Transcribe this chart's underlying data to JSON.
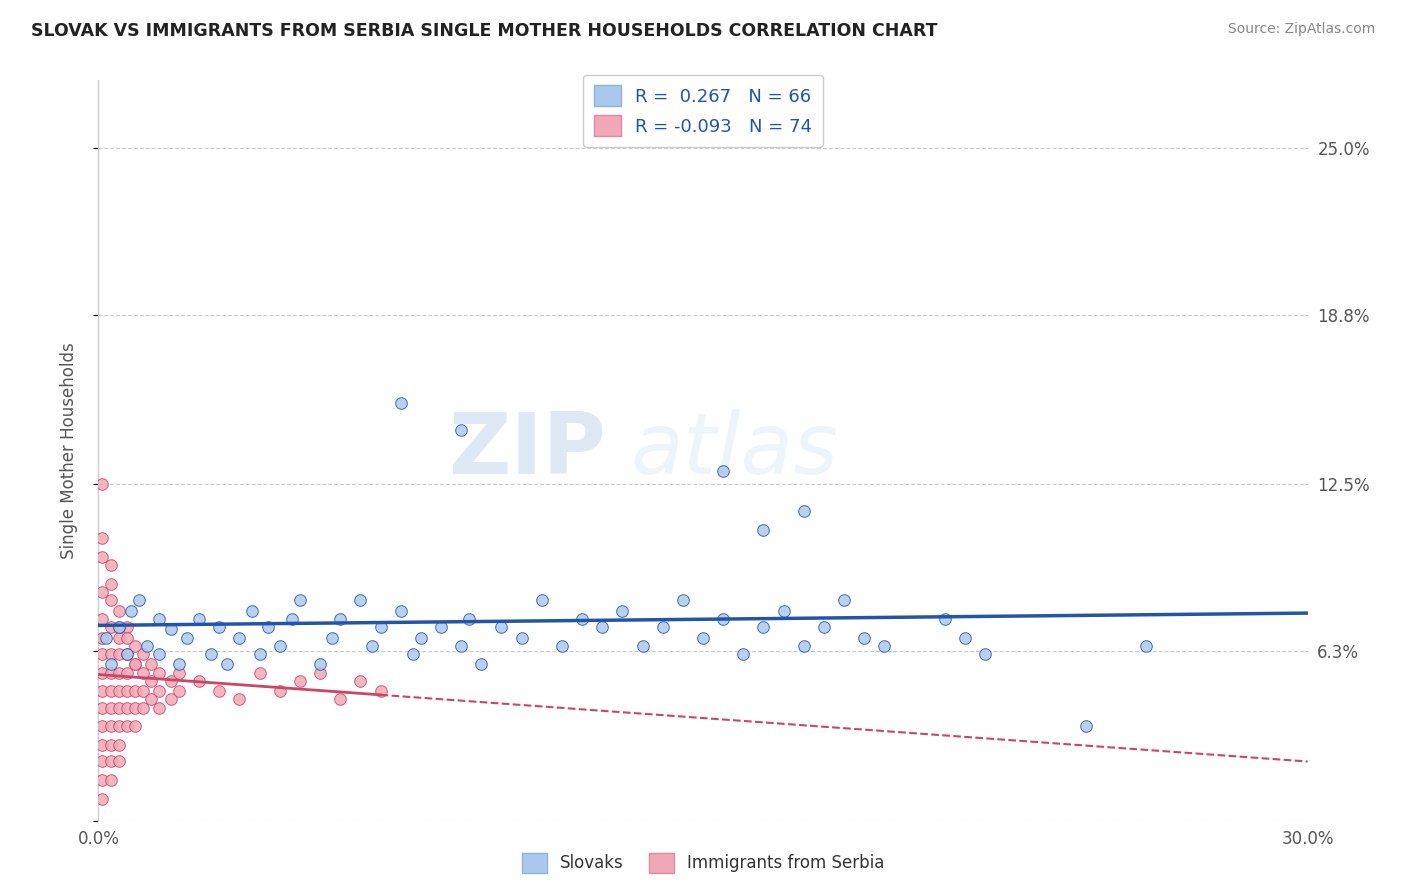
{
  "title": "SLOVAK VS IMMIGRANTS FROM SERBIA SINGLE MOTHER HOUSEHOLDS CORRELATION CHART",
  "source": "Source: ZipAtlas.com",
  "ylabel": "Single Mother Households",
  "xlim": [
    0.0,
    0.3
  ],
  "ylim": [
    0.0,
    0.275
  ],
  "yticks": [
    0.0,
    0.063,
    0.125,
    0.188,
    0.25
  ],
  "ytick_labels": [
    "",
    "6.3%",
    "12.5%",
    "18.8%",
    "25.0%"
  ],
  "xticks": [
    0.0,
    0.05,
    0.1,
    0.15,
    0.2,
    0.25,
    0.3
  ],
  "xtick_labels": [
    "0.0%",
    "",
    "",
    "",
    "",
    "",
    "30.0%"
  ],
  "r_slovak": 0.267,
  "n_slovak": 66,
  "r_serbia": -0.093,
  "n_serbia": 74,
  "blue_color": "#adc8ed",
  "pink_color": "#f0a8b8",
  "line_blue": "#2255aa",
  "line_pink": "#cc4466",
  "watermark_zip": "ZIP",
  "watermark_atlas": "atlas",
  "background_color": "#ffffff",
  "grid_color": "#cccccc",
  "legend_label_slovak": "Slovaks",
  "legend_label_serbia": "Immigrants from Serbia",
  "scatter_blue": [
    [
      0.002,
      0.068
    ],
    [
      0.003,
      0.058
    ],
    [
      0.005,
      0.072
    ],
    [
      0.007,
      0.062
    ],
    [
      0.008,
      0.078
    ],
    [
      0.01,
      0.082
    ],
    [
      0.012,
      0.065
    ],
    [
      0.015,
      0.075
    ],
    [
      0.015,
      0.062
    ],
    [
      0.018,
      0.071
    ],
    [
      0.02,
      0.058
    ],
    [
      0.022,
      0.068
    ],
    [
      0.025,
      0.075
    ],
    [
      0.028,
      0.062
    ],
    [
      0.03,
      0.072
    ],
    [
      0.032,
      0.058
    ],
    [
      0.035,
      0.068
    ],
    [
      0.038,
      0.078
    ],
    [
      0.04,
      0.062
    ],
    [
      0.042,
      0.072
    ],
    [
      0.045,
      0.065
    ],
    [
      0.048,
      0.075
    ],
    [
      0.05,
      0.082
    ],
    [
      0.055,
      0.058
    ],
    [
      0.058,
      0.068
    ],
    [
      0.06,
      0.075
    ],
    [
      0.065,
      0.082
    ],
    [
      0.068,
      0.065
    ],
    [
      0.07,
      0.072
    ],
    [
      0.075,
      0.078
    ],
    [
      0.078,
      0.062
    ],
    [
      0.08,
      0.068
    ],
    [
      0.085,
      0.072
    ],
    [
      0.09,
      0.065
    ],
    [
      0.092,
      0.075
    ],
    [
      0.095,
      0.058
    ],
    [
      0.1,
      0.072
    ],
    [
      0.105,
      0.068
    ],
    [
      0.11,
      0.082
    ],
    [
      0.115,
      0.065
    ],
    [
      0.12,
      0.075
    ],
    [
      0.125,
      0.072
    ],
    [
      0.13,
      0.078
    ],
    [
      0.135,
      0.065
    ],
    [
      0.14,
      0.072
    ],
    [
      0.145,
      0.082
    ],
    [
      0.15,
      0.068
    ],
    [
      0.155,
      0.075
    ],
    [
      0.16,
      0.062
    ],
    [
      0.165,
      0.072
    ],
    [
      0.17,
      0.078
    ],
    [
      0.175,
      0.065
    ],
    [
      0.18,
      0.072
    ],
    [
      0.185,
      0.082
    ],
    [
      0.19,
      0.068
    ],
    [
      0.075,
      0.155
    ],
    [
      0.09,
      0.145
    ],
    [
      0.155,
      0.13
    ],
    [
      0.175,
      0.115
    ],
    [
      0.165,
      0.108
    ],
    [
      0.195,
      0.065
    ],
    [
      0.21,
      0.075
    ],
    [
      0.215,
      0.068
    ],
    [
      0.22,
      0.062
    ],
    [
      0.245,
      0.035
    ],
    [
      0.26,
      0.065
    ]
  ],
  "scatter_pink": [
    [
      0.001,
      0.125
    ],
    [
      0.001,
      0.105
    ],
    [
      0.001,
      0.085
    ],
    [
      0.001,
      0.075
    ],
    [
      0.001,
      0.068
    ],
    [
      0.001,
      0.062
    ],
    [
      0.001,
      0.055
    ],
    [
      0.001,
      0.048
    ],
    [
      0.001,
      0.042
    ],
    [
      0.001,
      0.035
    ],
    [
      0.001,
      0.028
    ],
    [
      0.001,
      0.022
    ],
    [
      0.001,
      0.015
    ],
    [
      0.001,
      0.008
    ],
    [
      0.003,
      0.095
    ],
    [
      0.003,
      0.082
    ],
    [
      0.003,
      0.072
    ],
    [
      0.003,
      0.062
    ],
    [
      0.003,
      0.055
    ],
    [
      0.003,
      0.048
    ],
    [
      0.003,
      0.042
    ],
    [
      0.003,
      0.035
    ],
    [
      0.003,
      0.028
    ],
    [
      0.003,
      0.022
    ],
    [
      0.003,
      0.015
    ],
    [
      0.005,
      0.078
    ],
    [
      0.005,
      0.068
    ],
    [
      0.005,
      0.062
    ],
    [
      0.005,
      0.055
    ],
    [
      0.005,
      0.048
    ],
    [
      0.005,
      0.042
    ],
    [
      0.005,
      0.035
    ],
    [
      0.005,
      0.028
    ],
    [
      0.005,
      0.022
    ],
    [
      0.007,
      0.072
    ],
    [
      0.007,
      0.062
    ],
    [
      0.007,
      0.055
    ],
    [
      0.007,
      0.048
    ],
    [
      0.007,
      0.042
    ],
    [
      0.007,
      0.035
    ],
    [
      0.009,
      0.065
    ],
    [
      0.009,
      0.058
    ],
    [
      0.009,
      0.048
    ],
    [
      0.009,
      0.042
    ],
    [
      0.009,
      0.035
    ],
    [
      0.011,
      0.062
    ],
    [
      0.011,
      0.055
    ],
    [
      0.011,
      0.048
    ],
    [
      0.011,
      0.042
    ],
    [
      0.013,
      0.058
    ],
    [
      0.013,
      0.052
    ],
    [
      0.013,
      0.045
    ],
    [
      0.015,
      0.055
    ],
    [
      0.015,
      0.048
    ],
    [
      0.015,
      0.042
    ],
    [
      0.018,
      0.052
    ],
    [
      0.018,
      0.045
    ],
    [
      0.02,
      0.055
    ],
    [
      0.02,
      0.048
    ],
    [
      0.025,
      0.052
    ],
    [
      0.03,
      0.048
    ],
    [
      0.035,
      0.045
    ],
    [
      0.04,
      0.055
    ],
    [
      0.045,
      0.048
    ],
    [
      0.05,
      0.052
    ],
    [
      0.055,
      0.055
    ],
    [
      0.06,
      0.045
    ],
    [
      0.065,
      0.052
    ],
    [
      0.07,
      0.048
    ],
    [
      0.001,
      0.098
    ],
    [
      0.003,
      0.088
    ],
    [
      0.005,
      0.072
    ],
    [
      0.007,
      0.068
    ],
    [
      0.009,
      0.058
    ]
  ]
}
